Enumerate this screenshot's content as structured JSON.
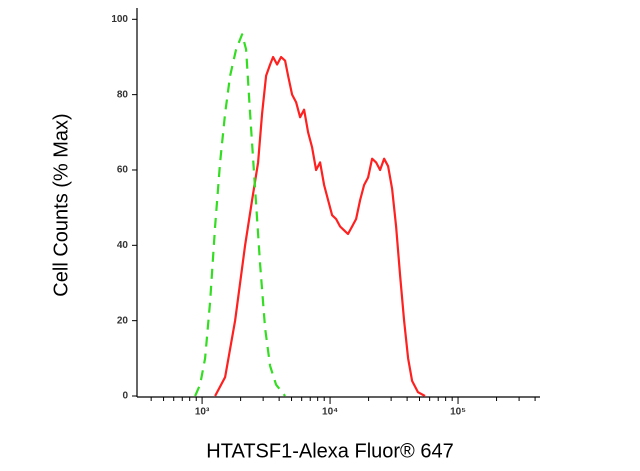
{
  "chart_data": {
    "type": "line",
    "xlabel": "HTATSF1-Alexa Fluor® 647",
    "ylabel": "Cell Counts (% Max)",
    "xscale": "log",
    "xlim": [
      310,
      437000
    ],
    "ylim": [
      0,
      103
    ],
    "xticks": [
      {
        "value": 1000,
        "label": "10³"
      },
      {
        "value": 10000,
        "label": "10⁴"
      },
      {
        "value": 100000,
        "label": "10⁵"
      }
    ],
    "xminorticks": [
      400,
      500,
      600,
      700,
      800,
      900,
      2000,
      3000,
      4000,
      5000,
      6000,
      7000,
      8000,
      9000,
      20000,
      30000,
      40000,
      50000,
      60000,
      70000,
      80000,
      90000,
      200000,
      300000,
      400000
    ],
    "yticks": [
      0,
      20,
      40,
      60,
      80,
      100
    ],
    "series": [
      {
        "color": "#ff2020",
        "style": "solid",
        "x": [
          1264,
          1512,
          1811,
          2168,
          2459,
          2738,
          2943,
          3162,
          3398,
          3586,
          3853,
          4142,
          4451,
          4697,
          5048,
          5425,
          5831,
          6266,
          6734,
          7236,
          7776,
          8357,
          8981,
          9647,
          10370,
          11140,
          11970,
          12870,
          13820,
          14860,
          15970,
          17160,
          18440,
          19820,
          21300,
          22880,
          24590,
          26420,
          28390,
          30510,
          32790,
          35240,
          37860,
          40690,
          43720,
          48700,
          55230
        ],
        "values": [
          0,
          5,
          20,
          40,
          52,
          62,
          75,
          85,
          88,
          90,
          88,
          90,
          89,
          85,
          80,
          78,
          74,
          76,
          70,
          66,
          60,
          62,
          56,
          52,
          48,
          47,
          45,
          44,
          43,
          45,
          47,
          52,
          56,
          58,
          63,
          62,
          60,
          63,
          61,
          55,
          45,
          32,
          20,
          10,
          4,
          1,
          0
        ]
      },
      {
        "color": "#33dd22",
        "style": "dashed",
        "x": [
          882,
          965,
          1055,
          1155,
          1264,
          1382,
          1512,
          1655,
          1844,
          2054,
          2207,
          2371,
          2595,
          2839,
          3106,
          3398,
          3786,
          4451
        ],
        "values": [
          0,
          3,
          10,
          25,
          45,
          62,
          75,
          85,
          92,
          96,
          92,
          75,
          55,
          35,
          18,
          8,
          3,
          0
        ]
      }
    ]
  }
}
